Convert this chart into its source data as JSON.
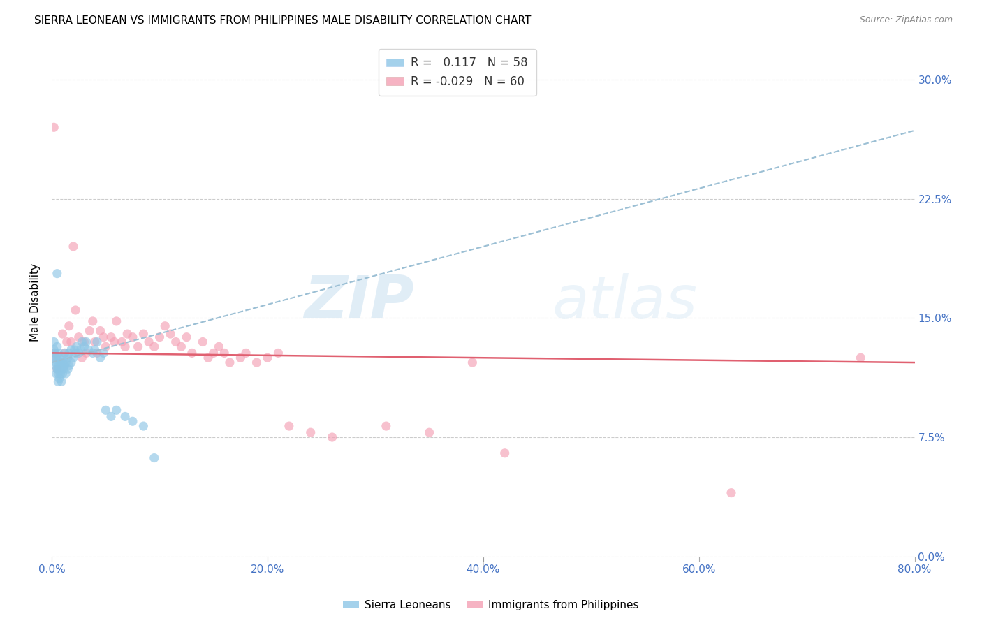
{
  "title": "SIERRA LEONEAN VS IMMIGRANTS FROM PHILIPPINES MALE DISABILITY CORRELATION CHART",
  "source": "Source: ZipAtlas.com",
  "xlabel_ticks": [
    "0.0%",
    "20.0%",
    "40.0%",
    "60.0%",
    "80.0%"
  ],
  "xlabel_vals": [
    0.0,
    0.2,
    0.4,
    0.6,
    0.8
  ],
  "ylabel": "Male Disability",
  "ylabel_ticks": [
    "0.0%",
    "7.5%",
    "15.0%",
    "22.5%",
    "30.0%"
  ],
  "ylabel_vals": [
    0.0,
    0.075,
    0.15,
    0.225,
    0.3
  ],
  "xlim": [
    0.0,
    0.8
  ],
  "ylim": [
    0.0,
    0.32
  ],
  "color_blue": "#8ec6e6",
  "color_pink": "#f4a0b5",
  "color_trend_blue": "#9bbfd4",
  "color_trend_pink": "#e06070",
  "watermark_zip": "ZIP",
  "watermark_atlas": "atlas",
  "sierra_x": [
    0.001,
    0.002,
    0.002,
    0.003,
    0.003,
    0.004,
    0.004,
    0.005,
    0.005,
    0.005,
    0.006,
    0.006,
    0.006,
    0.006,
    0.007,
    0.007,
    0.007,
    0.008,
    0.008,
    0.009,
    0.009,
    0.01,
    0.01,
    0.011,
    0.011,
    0.012,
    0.012,
    0.013,
    0.013,
    0.015,
    0.015,
    0.016,
    0.016,
    0.018,
    0.018,
    0.02,
    0.021,
    0.022,
    0.023,
    0.025,
    0.027,
    0.028,
    0.03,
    0.032,
    0.034,
    0.038,
    0.04,
    0.042,
    0.045,
    0.048,
    0.05,
    0.055,
    0.06,
    0.068,
    0.075,
    0.085,
    0.095,
    0.005
  ],
  "sierra_y": [
    0.125,
    0.13,
    0.135,
    0.12,
    0.128,
    0.115,
    0.122,
    0.118,
    0.125,
    0.132,
    0.11,
    0.115,
    0.12,
    0.128,
    0.112,
    0.118,
    0.125,
    0.115,
    0.122,
    0.11,
    0.12,
    0.115,
    0.122,
    0.118,
    0.125,
    0.12,
    0.128,
    0.115,
    0.122,
    0.118,
    0.125,
    0.12,
    0.128,
    0.122,
    0.13,
    0.125,
    0.13,
    0.128,
    0.132,
    0.128,
    0.13,
    0.135,
    0.132,
    0.135,
    0.13,
    0.128,
    0.13,
    0.135,
    0.125,
    0.128,
    0.092,
    0.088,
    0.092,
    0.088,
    0.085,
    0.082,
    0.062,
    0.178
  ],
  "phil_x": [
    0.002,
    0.003,
    0.004,
    0.005,
    0.01,
    0.012,
    0.014,
    0.016,
    0.018,
    0.02,
    0.022,
    0.025,
    0.028,
    0.03,
    0.032,
    0.035,
    0.038,
    0.04,
    0.042,
    0.045,
    0.048,
    0.05,
    0.055,
    0.058,
    0.06,
    0.065,
    0.068,
    0.07,
    0.075,
    0.08,
    0.085,
    0.09,
    0.095,
    0.1,
    0.105,
    0.11,
    0.115,
    0.12,
    0.125,
    0.13,
    0.14,
    0.145,
    0.15,
    0.155,
    0.16,
    0.165,
    0.175,
    0.18,
    0.19,
    0.2,
    0.21,
    0.22,
    0.24,
    0.26,
    0.31,
    0.35,
    0.39,
    0.42,
    0.63,
    0.75
  ],
  "phil_y": [
    0.27,
    0.128,
    0.125,
    0.118,
    0.14,
    0.128,
    0.135,
    0.145,
    0.135,
    0.195,
    0.155,
    0.138,
    0.125,
    0.135,
    0.128,
    0.142,
    0.148,
    0.135,
    0.128,
    0.142,
    0.138,
    0.132,
    0.138,
    0.135,
    0.148,
    0.135,
    0.132,
    0.14,
    0.138,
    0.132,
    0.14,
    0.135,
    0.132,
    0.138,
    0.145,
    0.14,
    0.135,
    0.132,
    0.138,
    0.128,
    0.135,
    0.125,
    0.128,
    0.132,
    0.128,
    0.122,
    0.125,
    0.128,
    0.122,
    0.125,
    0.128,
    0.082,
    0.078,
    0.075,
    0.082,
    0.078,
    0.122,
    0.065,
    0.04,
    0.125
  ]
}
